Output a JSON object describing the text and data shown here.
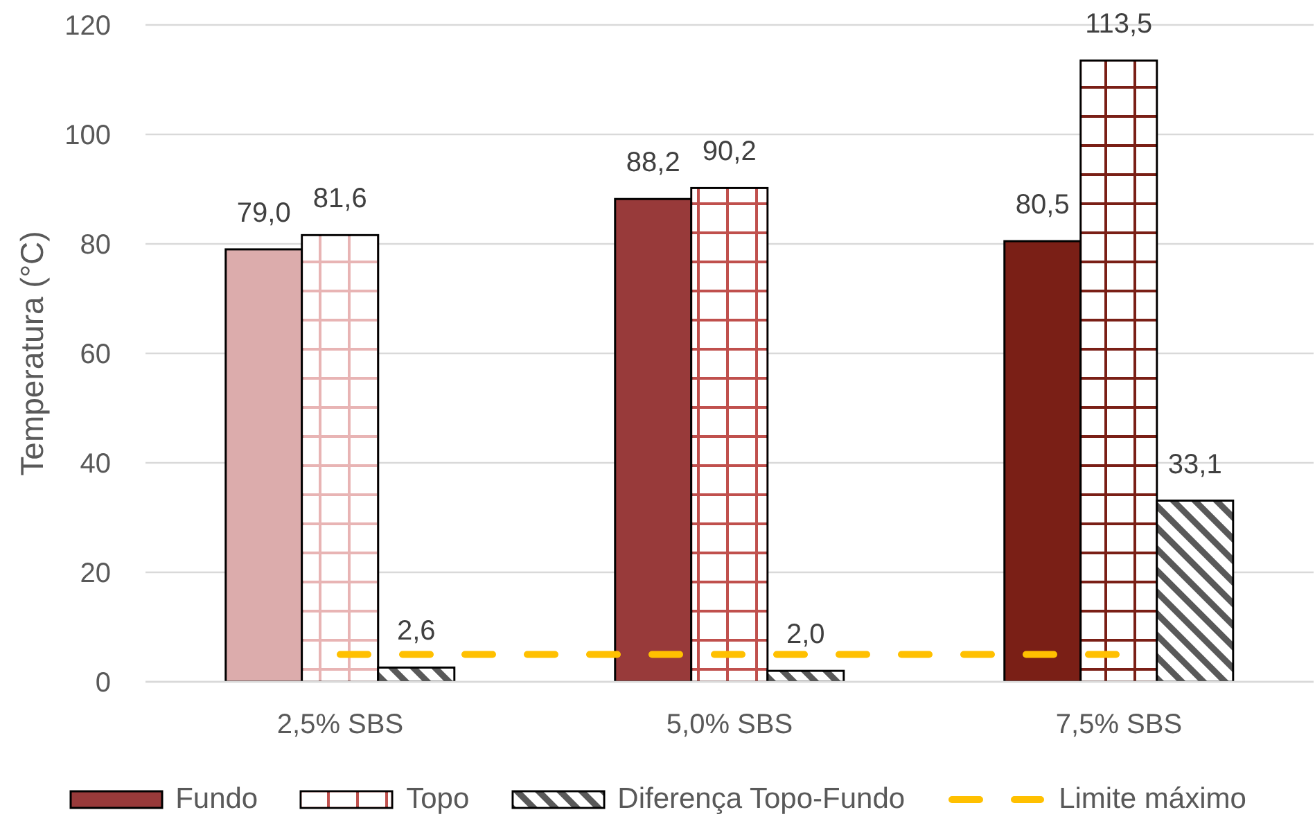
{
  "chart_data": {
    "type": "bar",
    "ylabel": "Temperatura (°C)",
    "categories": [
      "2,5% SBS",
      "5,0% SBS",
      "7,5% SBS"
    ],
    "ylim": [
      0,
      120
    ],
    "yticks": [
      0,
      20,
      40,
      60,
      80,
      100,
      120
    ],
    "grid": "y",
    "legend": "bottom",
    "series": [
      {
        "name": "Fundo",
        "color": "#983a3a",
        "colors": [
          "#dcacac",
          "#983a3a",
          "#7a1f16"
        ],
        "values": [
          79.0,
          88.2,
          80.5
        ],
        "value_labels": [
          "79,0",
          "88,2",
          "80,5"
        ]
      },
      {
        "name": "Topo",
        "color": "#c0504d",
        "colors": [
          "#e8b4b4",
          "#c0504d",
          "#7a1f16"
        ],
        "values": [
          81.6,
          90.2,
          113.5
        ],
        "value_labels": [
          "81,6",
          "90,2",
          "113,5"
        ]
      },
      {
        "name": "Diferença Topo-Fundo",
        "color": "#595959",
        "values": [
          2.6,
          2.0,
          33.1
        ],
        "value_labels": [
          "2,6",
          "2,0",
          "33,1"
        ]
      },
      {
        "name": "Limite máximo",
        "type": "line",
        "color": "#ffc000",
        "values": [
          5,
          5,
          5
        ],
        "line_style": "dashed",
        "marker": "none"
      }
    ]
  }
}
